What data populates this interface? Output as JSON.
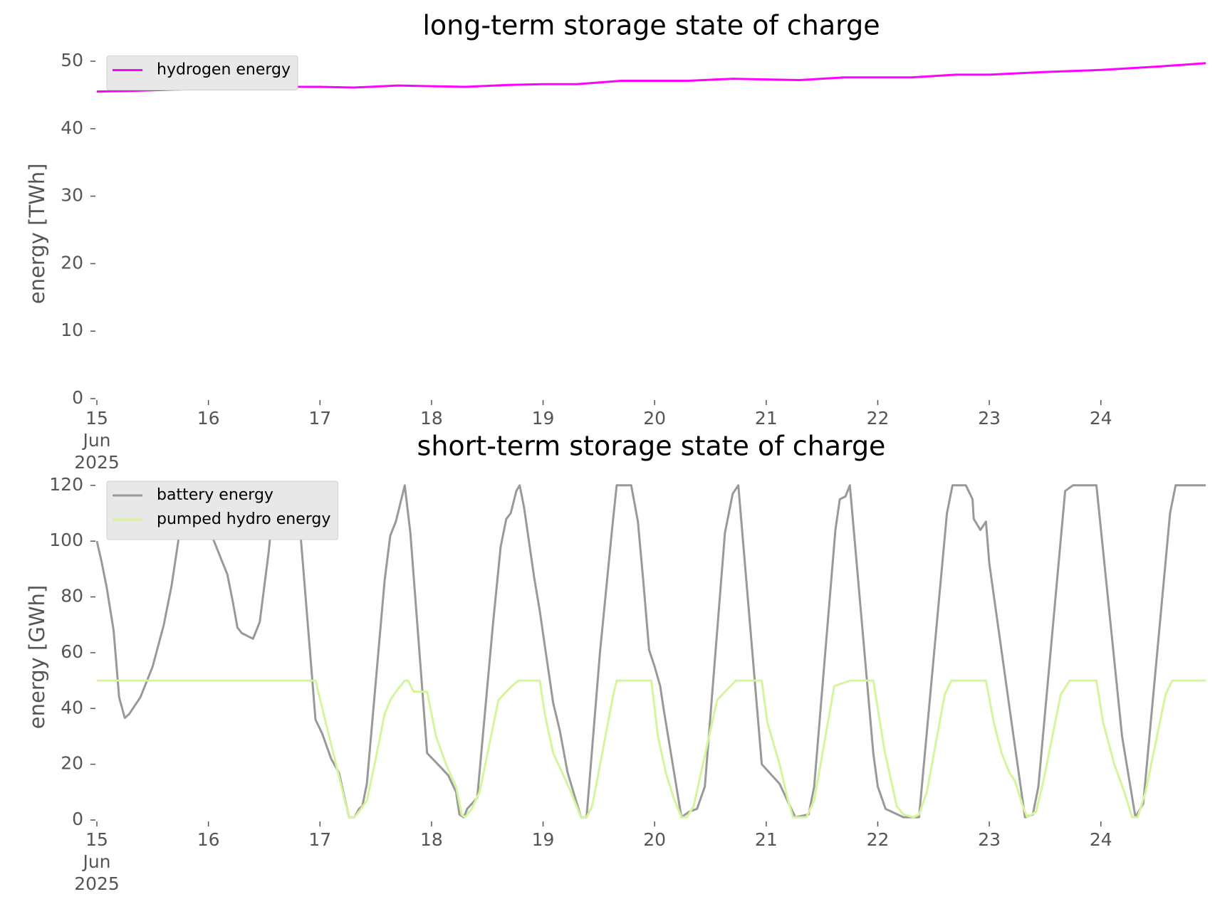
{
  "chart_data": [
    {
      "type": "line",
      "title": "long-term storage state of charge",
      "ylabel": "energy [TWh]",
      "xlim": [
        15,
        24.94
      ],
      "ylim": [
        0,
        51
      ],
      "xticks": [
        {
          "value": 15,
          "label": "15\nJun\n2025"
        },
        16,
        17,
        18,
        19,
        20,
        21,
        22,
        23,
        24
      ],
      "yticks": [
        0,
        10,
        20,
        30,
        40,
        50
      ],
      "grid": false,
      "legend": "upper left",
      "series": [
        {
          "name": "hydrogen energy",
          "color": "#ff00ff",
          "x": [
            15,
            15.3,
            15.7,
            16,
            16.3,
            16.7,
            17,
            17.3,
            17.7,
            18,
            18.3,
            18.7,
            19,
            19.3,
            19.7,
            20,
            20.3,
            20.7,
            21,
            21.3,
            21.7,
            22,
            22.3,
            22.7,
            23,
            23.5,
            24,
            24.5,
            24.94
          ],
          "values": [
            45.5,
            45.6,
            45.8,
            45.9,
            45.9,
            46.2,
            46.2,
            46.1,
            46.4,
            46.3,
            46.2,
            46.5,
            46.6,
            46.6,
            47.1,
            47.1,
            47.1,
            47.4,
            47.3,
            47.2,
            47.6,
            47.6,
            47.6,
            48.0,
            48.0,
            48.4,
            48.7,
            49.2,
            49.7
          ]
        }
      ]
    },
    {
      "type": "line",
      "title": "short-term storage state of charge",
      "ylabel": "energy [GWh]",
      "xlim": [
        15,
        24.94
      ],
      "ylim": [
        0,
        122
      ],
      "xticks": [
        {
          "value": 15,
          "label": "15\nJun\n2025"
        },
        16,
        17,
        18,
        19,
        20,
        21,
        22,
        23,
        24
      ],
      "yticks": [
        0,
        20,
        40,
        60,
        80,
        100,
        120
      ],
      "grid": false,
      "legend": "upper left",
      "series": [
        {
          "name": "battery energy",
          "color": "#999999",
          "x": [
            15,
            15.04,
            15.09,
            15.15,
            15.2,
            15.25,
            15.29,
            15.39,
            15.5,
            15.6,
            15.67,
            15.73,
            15.78,
            15.85,
            15.94,
            16.02,
            16.12,
            16.17,
            16.22,
            16.26,
            16.3,
            16.4,
            16.46,
            16.54,
            16.59,
            16.63,
            16.75,
            16.8,
            16.96,
            17.02,
            17.1,
            17.17,
            17.26,
            17.31,
            17.35,
            17.38,
            17.42,
            17.58,
            17.63,
            17.68,
            17.76,
            17.81,
            17.96,
            18.08,
            18.15,
            18.22,
            18.25,
            18.29,
            18.32,
            18.41,
            18.55,
            18.62,
            18.67,
            18.71,
            18.76,
            18.79,
            18.83,
            18.92,
            18.97,
            19.01,
            19.09,
            19.15,
            19.22,
            19.34,
            19.39,
            19.51,
            19.62,
            19.66,
            19.79,
            19.85,
            19.9,
            19.95,
            20.0,
            20.05,
            20.08,
            20.24,
            20.31,
            20.38,
            20.45,
            20.63,
            20.7,
            20.75,
            20.96,
            21.12,
            21.26,
            21.38,
            21.43,
            21.62,
            21.66,
            21.71,
            21.75,
            21.96,
            22.0,
            22.07,
            22.23,
            22.37,
            22.62,
            22.67,
            22.79,
            22.85,
            22.86,
            22.92,
            22.97,
            23.0,
            23.21,
            23.32,
            23.39,
            23.44,
            23.68,
            23.75,
            23.96,
            24.19,
            24.31,
            24.38,
            24.62,
            24.67,
            24.94
          ],
          "values": [
            100,
            93,
            83,
            68,
            44,
            36.6,
            38,
            44,
            55,
            70,
            84,
            100,
            118,
            120,
            115,
            103,
            93,
            88,
            78,
            69,
            67,
            65,
            71,
            96,
            116,
            120,
            120,
            115,
            36,
            31,
            22,
            17,
            1,
            1,
            4,
            5,
            13,
            86,
            102,
            107,
            120,
            103,
            24,
            19,
            16,
            10,
            2,
            1,
            4,
            8,
            70,
            98,
            108,
            110,
            118,
            120,
            112,
            87,
            75,
            64,
            42,
            32,
            17,
            1,
            1,
            60,
            105,
            120,
            120,
            107,
            85,
            61,
            55,
            48,
            40,
            1,
            3,
            4,
            12,
            103,
            117,
            120,
            20,
            13,
            1,
            2,
            12,
            104,
            115,
            116,
            120,
            24,
            12,
            4,
            1,
            1,
            110,
            120,
            120,
            115,
            108,
            104,
            107,
            92,
            32,
            1,
            2,
            12,
            118,
            120,
            120,
            30,
            1,
            6,
            110,
            120,
            120
          ]
        },
        {
          "name": "pumped hydro energy",
          "color": "#d4f59c",
          "x": [
            15,
            16.96,
            17.26,
            17.31,
            17.35,
            17.42,
            17.49,
            17.58,
            17.63,
            17.68,
            17.76,
            17.79,
            17.84,
            17.96,
            18.04,
            18.13,
            18.22,
            18.27,
            18.3,
            18.36,
            18.43,
            18.6,
            18.67,
            18.72,
            18.78,
            18.97,
            19.02,
            19.09,
            19.16,
            19.25,
            19.34,
            19.39,
            19.44,
            19.63,
            19.66,
            19.97,
            20.03,
            20.1,
            20.17,
            20.24,
            20.29,
            20.35,
            20.56,
            20.63,
            20.73,
            20.96,
            21.01,
            21.12,
            21.19,
            21.24,
            21.36,
            21.43,
            21.61,
            21.68,
            21.75,
            21.96,
            22.06,
            22.17,
            22.23,
            22.32,
            22.37,
            22.44,
            22.6,
            22.66,
            22.97,
            23.04,
            23.11,
            23.18,
            23.23,
            23.3,
            23.34,
            23.42,
            23.49,
            23.64,
            23.72,
            23.96,
            24.02,
            24.12,
            24.21,
            24.28,
            24.33,
            24.4,
            24.58,
            24.64,
            24.94
          ],
          "values": [
            50,
            50,
            1,
            1,
            3,
            7,
            20,
            38,
            43,
            46,
            50,
            50,
            46,
            46,
            30,
            20,
            12,
            2,
            1,
            4,
            10,
            43,
            46,
            48,
            50,
            50,
            37,
            24,
            18,
            10,
            1,
            1,
            5,
            45,
            50,
            50,
            30,
            17,
            8,
            1,
            1,
            5,
            43,
            46,
            50,
            50,
            35,
            20,
            8,
            1,
            1,
            7,
            48,
            49,
            50,
            50,
            25,
            5,
            2,
            1,
            2,
            10,
            45,
            50,
            50,
            35,
            24,
            17,
            14,
            5,
            1,
            3,
            15,
            45,
            50,
            50,
            35,
            20,
            10,
            1,
            1,
            10,
            45,
            50,
            50
          ]
        }
      ]
    }
  ]
}
